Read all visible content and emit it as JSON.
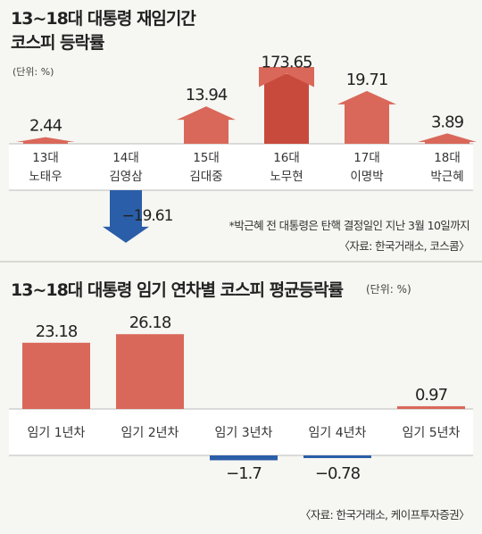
{
  "chart1": {
    "title_line1": "13~18대 대통령 재임기간",
    "title_line2": "코스피 등락률",
    "unit": "(단위: %)",
    "note": "*박근혜 전 대통령은 탄핵 결정일인 지난 3월 10일까지",
    "source": "〈자료: 한국거래소, 코스콤〉"
  },
  "chart2": {
    "title": "13~18대 대통령 임기 연차별 코스피 평균등락률",
    "unit": "(단위: %)",
    "source": "〈자료: 한국거래소, 케이프투자증권〉"
  },
  "colors": {
    "bar": "#d9685a",
    "bar_dark": "#c84a3c",
    "negative": "#2a5ea8",
    "bg": "#f6f6f2"
  },
  "chart_data": [
    {
      "type": "bar",
      "title": "13~18대 대통령 재임기간 코스피 등락률",
      "categories": [
        [
          "13대",
          "노태우"
        ],
        [
          "14대",
          "김영삼"
        ],
        [
          "15대",
          "김대중"
        ],
        [
          "16대",
          "노무현"
        ],
        [
          "17대",
          "이명박"
        ],
        [
          "18대",
          "박근혜"
        ]
      ],
      "values": [
        2.44,
        -19.61,
        13.94,
        173.65,
        19.71,
        3.89
      ],
      "labels": [
        "2.44",
        "-19.61",
        "13.94",
        "173.65",
        "19.71",
        "3.89"
      ],
      "ylabel": "%"
    },
    {
      "type": "bar",
      "title": "13~18대 대통령 임기 연차별 코스피 평균등락률",
      "categories": [
        "임기 1년차",
        "임기 2년차",
        "임기 3년차",
        "임기 4년차",
        "임기 5년차"
      ],
      "values": [
        23.18,
        26.18,
        -1.7,
        -0.78,
        0.97
      ],
      "labels": [
        "23.18",
        "26.18",
        "-1.7",
        "-0.78",
        "0.97"
      ],
      "ylabel": "%"
    }
  ]
}
